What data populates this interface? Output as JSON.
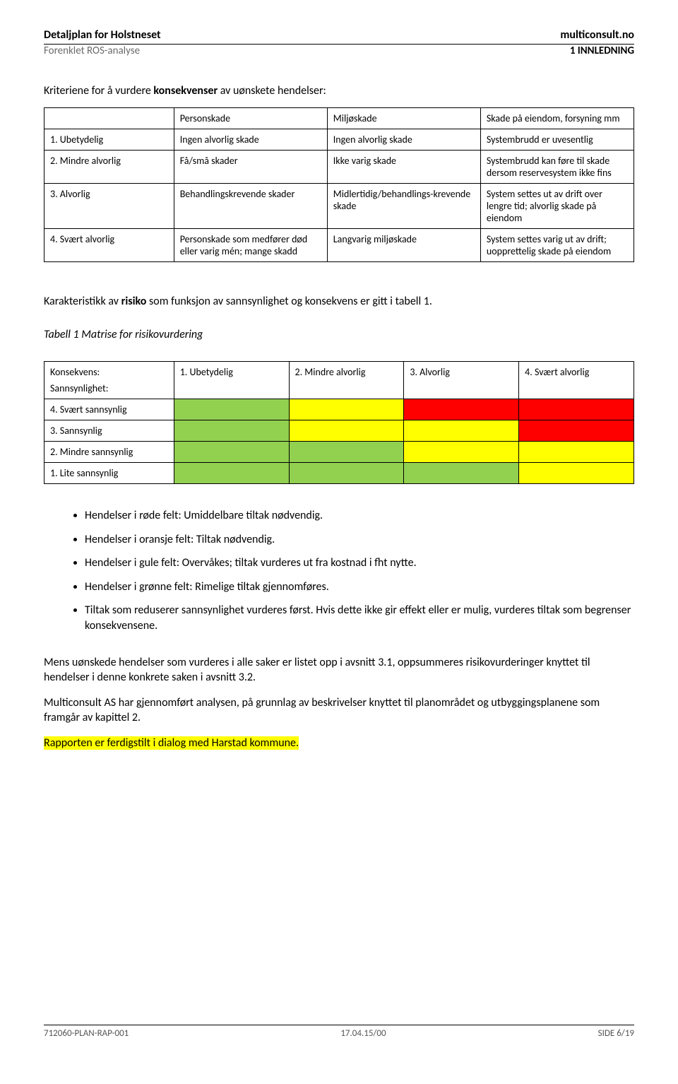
{
  "header": {
    "title_left": "Detaljplan for Holstneset",
    "title_right": "multiconsult.no",
    "sub_left": "Forenklet ROS-analyse",
    "sub_right": "1 INNLEDNING"
  },
  "intro": {
    "prefix": "Kriteriene for å vurdere ",
    "bold": "konsekvenser",
    "suffix": " av uønskete hendelser:"
  },
  "table1": {
    "headers": [
      "",
      "Personskade",
      "Miljøskade",
      "Skade på eiendom, forsyning mm"
    ],
    "rows": [
      [
        "1. Ubetydelig",
        "Ingen alvorlig skade",
        "Ingen alvorlig skade",
        "Systembrudd er uvesentlig"
      ],
      [
        "2. Mindre alvorlig",
        "Få/små skader",
        "Ikke varig skade",
        "Systembrudd kan føre til skade dersom reservesystem ikke fins"
      ],
      [
        "3. Alvorlig",
        "Behandlingskrevende skader",
        "Midlertidig/behandlings-krevende skade",
        "System settes ut av drift over lengre tid; alvorlig skade på eiendom"
      ],
      [
        "4. Svært alvorlig",
        "Personskade som medfører død eller varig mén; mange skadd",
        "Langvarig miljøskade",
        "System settes varig ut av drift; uopprettelig skade på eiendom"
      ]
    ]
  },
  "karakteristikk": {
    "prefix": "Karakteristikk av ",
    "bold": "risiko",
    "suffix": " som funksjon av sannsynlighet og konsekvens er gitt i tabell 1."
  },
  "table2_caption": "Tabell 1  Matrise for risikovurdering",
  "matrix": {
    "header_top": "Konsekvens:",
    "header_bottom": "Sannsynlighet:",
    "cols": [
      "1. Ubetydelig",
      "2. Mindre alvorlig",
      "3. Alvorlig",
      "4. Svært alvorlig"
    ],
    "rows": [
      {
        "label": "4. Svært sannsynlig",
        "colors": [
          "#92d050",
          "#ffff00",
          "#ff0000",
          "#ff0000"
        ]
      },
      {
        "label": "3. Sannsynlig",
        "colors": [
          "#92d050",
          "#ffff00",
          "#ffff00",
          "#ff0000"
        ]
      },
      {
        "label": "2. Mindre sannsynlig",
        "colors": [
          "#92d050",
          "#92d050",
          "#ffff00",
          "#ffff00"
        ]
      },
      {
        "label": "1. Lite sannsynlig",
        "colors": [
          "#92d050",
          "#92d050",
          "#92d050",
          "#ffff00"
        ]
      }
    ],
    "palette": {
      "green": "#92d050",
      "yellow": "#ffff00",
      "red": "#ff0000"
    }
  },
  "bullets": [
    "Hendelser i røde felt: Umiddelbare tiltak nødvendig.",
    "Hendelser i oransje felt: Tiltak nødvendig.",
    "Hendelser i gule felt: Overvåkes; tiltak vurderes ut fra kostnad i fht nytte.",
    "Hendelser i grønne felt: Rimelige tiltak gjennomføres.",
    "Tiltak som reduserer sannsynlighet vurderes først. Hvis dette ikke gir effekt eller er mulig, vurderes tiltak som begrenser konsekvensene."
  ],
  "para1": "Mens uønskede hendelser som vurderes i alle saker er listet opp i avsnitt 3.1, oppsummeres risikovurderinger knyttet til hendelser i denne konkrete saken i avsnitt 3.2.",
  "para2": "Multiconsult AS har gjennomført analysen, på grunnlag av beskrivelser knyttet til planområdet og utbyggingsplanene som framgår av kapittel 2.",
  "para3_highlight": "Rapporten er ferdigstilt i dialog med Harstad kommune.",
  "footer": {
    "left": "712060-PLAN-RAP-001",
    "center": "17.04.15/00",
    "right": "SIDE 6/19"
  }
}
